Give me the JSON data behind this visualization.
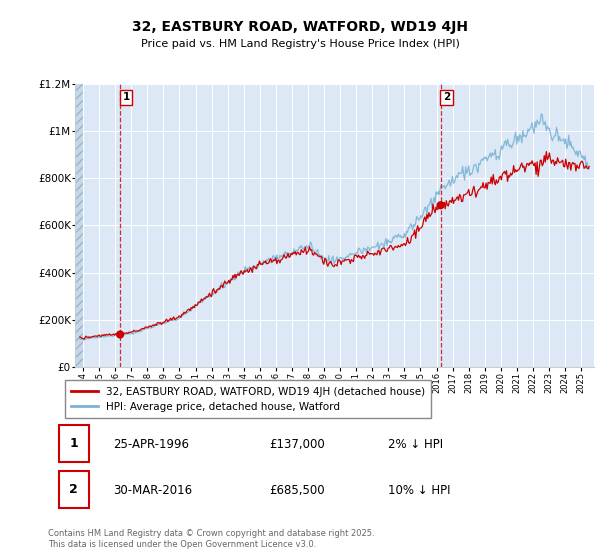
{
  "title": "32, EASTBURY ROAD, WATFORD, WD19 4JH",
  "subtitle": "Price paid vs. HM Land Registry's House Price Index (HPI)",
  "legend_line1": "32, EASTBURY ROAD, WATFORD, WD19 4JH (detached house)",
  "legend_line2": "HPI: Average price, detached house, Watford",
  "transaction1": {
    "label": "1",
    "date": "25-APR-1996",
    "price": 137000,
    "pct": "2% ↓ HPI",
    "year": 1996.31
  },
  "transaction2": {
    "label": "2",
    "date": "30-MAR-2016",
    "price": 685500,
    "pct": "10% ↓ HPI",
    "year": 2016.25
  },
  "footer": "Contains HM Land Registry data © Crown copyright and database right 2025.\nThis data is licensed under the Open Government Licence v3.0.",
  "ylim": [
    0,
    1200000
  ],
  "yticks": [
    0,
    200000,
    400000,
    600000,
    800000,
    1000000,
    1200000
  ],
  "ytick_labels": [
    "£0",
    "£200K",
    "£400K",
    "£600K",
    "£800K",
    "£1M",
    "£1.2M"
  ],
  "xlim_start": 1993.5,
  "xlim_end": 2025.8,
  "plot_bg": "#dce8f5",
  "red_color": "#cc0000",
  "blue_color": "#7ab3d4",
  "grid_color": "#ffffff",
  "dashed_color": "#cc0000",
  "hatch_area_end": 1994.0
}
